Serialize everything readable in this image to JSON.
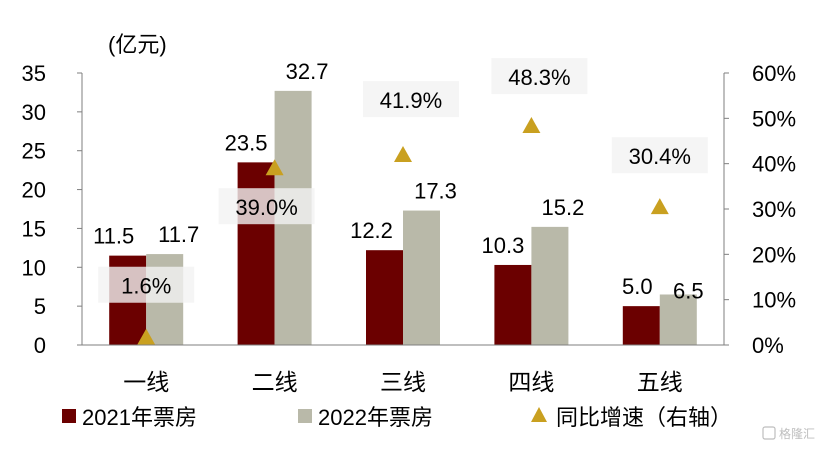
{
  "chart_data": {
    "type": "bar",
    "categories": [
      "一线",
      "二线",
      "三线",
      "四线",
      "五线"
    ],
    "series": [
      {
        "name": "2021年票房",
        "values": [
          11.5,
          23.5,
          12.2,
          10.3,
          5.0
        ],
        "labels": [
          "11.5",
          "23.5",
          "12.2",
          "10.3",
          "5.0"
        ],
        "color": "#6b0000",
        "axis": "left",
        "kind": "bar"
      },
      {
        "name": "2022年票房",
        "values": [
          11.7,
          32.7,
          17.3,
          15.2,
          6.5
        ],
        "labels": [
          "11.7",
          "32.7",
          "17.3",
          "15.2",
          "6.5"
        ],
        "color": "#b9b9a9",
        "axis": "left",
        "kind": "bar"
      },
      {
        "name": "同比增速（右轴）",
        "values": [
          1.6,
          39.0,
          41.9,
          48.3,
          30.4
        ],
        "labels": [
          "1.6%",
          "39.0%",
          "41.9%",
          "48.3%",
          "30.4%"
        ],
        "color": "#c9a020",
        "axis": "right",
        "kind": "marker",
        "marker": "triangle"
      }
    ],
    "left_axis": {
      "unit_label": "(亿元)",
      "ylim": [
        0,
        35
      ],
      "ticks": [
        0,
        5,
        10,
        15,
        20,
        25,
        30,
        35
      ],
      "tick_labels": [
        "0",
        "5",
        "10",
        "15",
        "20",
        "25",
        "30",
        "35"
      ]
    },
    "right_axis": {
      "ylim": [
        0,
        60
      ],
      "ticks": [
        0,
        10,
        20,
        30,
        40,
        50,
        60
      ],
      "tick_labels": [
        "0%",
        "10%",
        "20%",
        "30%",
        "40%",
        "50%",
        "60%"
      ]
    },
    "grid": false,
    "legend": {
      "position": "bottom"
    }
  },
  "watermark": "格隆汇"
}
